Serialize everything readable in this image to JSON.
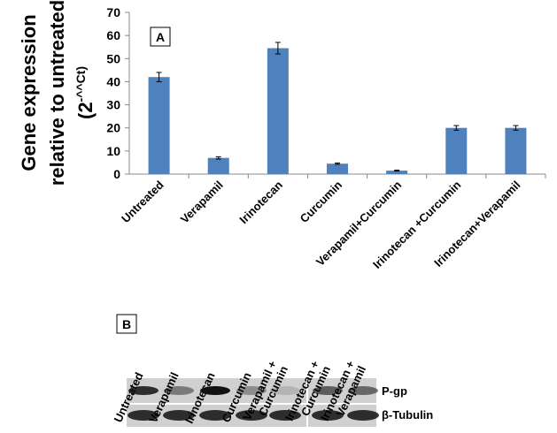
{
  "chart_data": {
    "type": "bar",
    "panel_label": "A",
    "y_label_lines": [
      "Gene expression",
      "relative to untreated"
    ],
    "y_label_formula": {
      "base": "(2",
      "superscript": "-^^Ct)"
    },
    "categories": [
      "Untreated",
      "Verapamil",
      "Irinotecan",
      "Curcumin",
      "Verapamil+Curcumin",
      "Irinotecan +Curcumin",
      "Irinotecan+Verapamil"
    ],
    "values": [
      42,
      7,
      54.5,
      4.5,
      1.5,
      20,
      20
    ],
    "errors": [
      2,
      0.5,
      2.5,
      0.3,
      0.2,
      1,
      1
    ],
    "color": "#4f81bd",
    "ylim": [
      0,
      70
    ],
    "yticks": [
      0,
      10,
      20,
      30,
      40,
      50,
      60,
      70
    ],
    "grid": false
  },
  "blot": {
    "panel_label": "B",
    "lanes": [
      [
        "Untreated"
      ],
      [
        "Verapamil"
      ],
      [
        "Irinotecan"
      ],
      [
        "Curcumin"
      ],
      [
        "Verapamil +",
        "Curcumin"
      ],
      [
        "Irinotecan +",
        "Curcumin"
      ],
      [
        "Irinotecan +",
        "Verapamil"
      ]
    ],
    "rows": [
      "P-gp",
      "β-Tubulin"
    ]
  }
}
